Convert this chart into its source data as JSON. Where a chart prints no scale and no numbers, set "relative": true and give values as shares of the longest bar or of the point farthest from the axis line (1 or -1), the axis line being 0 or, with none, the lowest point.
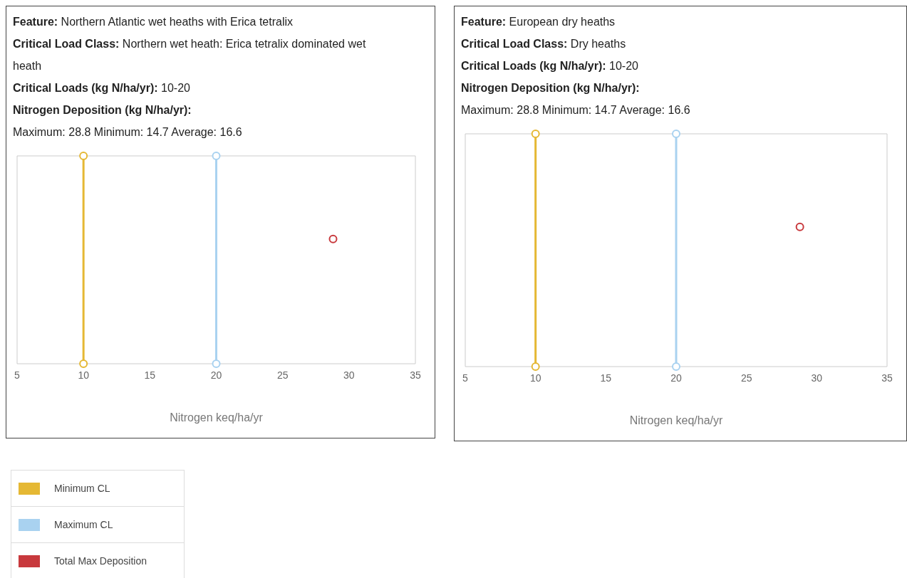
{
  "chart_data": [
    {
      "type": "scatter",
      "title": "Feature: Northern Atlantic wet heaths with Erica tetralix",
      "annotations": [
        "Critical Load Class: Northern wet heath: Erica tetralix dominated wet heath",
        "Critical Loads (kg N/ha/yr): 10-20",
        "Nitrogen Deposition (kg N/ha/yr):",
        "Maximum: 28.8 Minimum: 14.7 Average: 16.6"
      ],
      "xlabel": "Nitrogen keq/ha/yr",
      "xlim": [
        5,
        35
      ],
      "xticks": [
        5,
        10,
        15,
        20,
        25,
        30,
        35
      ],
      "relative": true,
      "tick_labels": "x",
      "legend": "bottom left",
      "marker": "circle",
      "series": [
        {
          "name": "Minimum CL",
          "type": "line",
          "color": "#e5b834",
          "x": [
            10,
            10
          ],
          "values": [
            0,
            1
          ]
        },
        {
          "name": "Maximum CL",
          "type": "line",
          "color": "#a9d2f0",
          "x": [
            20,
            20
          ],
          "values": [
            0,
            1
          ]
        },
        {
          "name": "Total Max Deposition",
          "type": "scatter",
          "color": "#c8393d",
          "x": [
            28.8
          ],
          "values": [
            0.6
          ]
        }
      ]
    },
    {
      "type": "scatter",
      "title": "Feature: European dry heaths",
      "annotations": [
        "Critical Load Class: Dry heaths",
        "Critical Loads (kg N/ha/yr): 10-20",
        "Nitrogen Deposition (kg N/ha/yr):",
        "Maximum: 28.8 Minimum: 14.7 Average: 16.6"
      ],
      "xlabel": "Nitrogen keq/ha/yr",
      "xlim": [
        5,
        35
      ],
      "xticks": [
        5,
        10,
        15,
        20,
        25,
        30,
        35
      ],
      "relative": true,
      "tick_labels": "x",
      "marker": "circle",
      "series": [
        {
          "type": "line",
          "color": "#e5b834",
          "x": [
            10,
            10
          ],
          "values": [
            0,
            1
          ]
        },
        {
          "type": "line",
          "color": "#a9d2f0",
          "x": [
            20,
            20
          ],
          "values": [
            0,
            1
          ]
        },
        {
          "type": "scatter",
          "color": "#c8393d",
          "x": [
            28.8
          ],
          "values": [
            0.6
          ]
        }
      ]
    }
  ]
}
